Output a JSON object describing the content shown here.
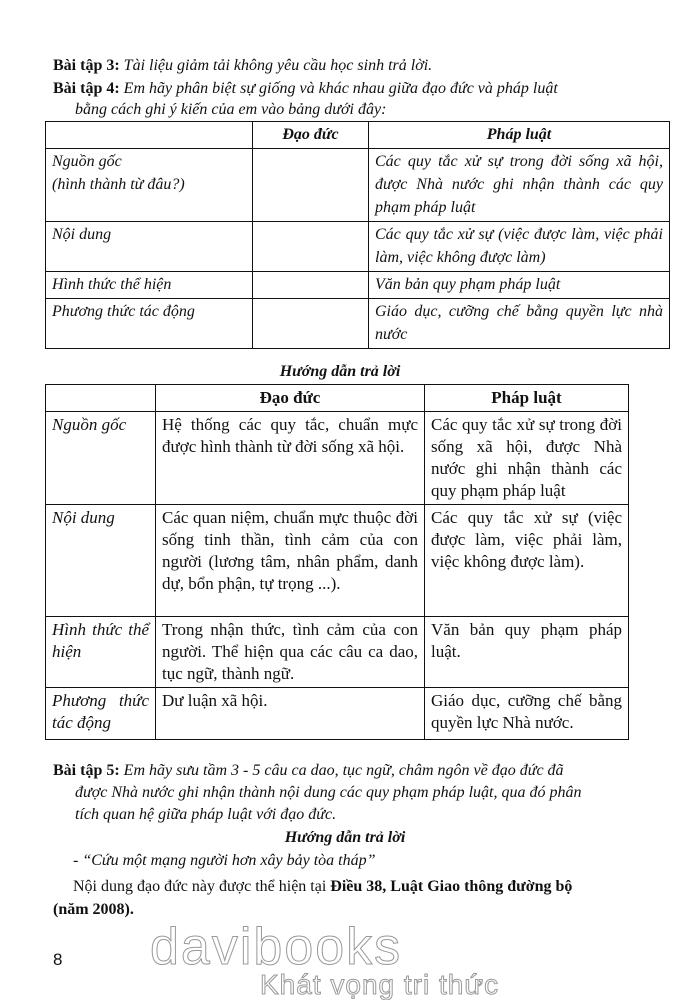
{
  "ex3": {
    "label": "Bài tập 3:",
    "text": "Tài liệu giảm tải không yêu cầu học sinh trả lời."
  },
  "ex4": {
    "label": "Bài tập 4:",
    "text_line1": "Em hãy phân biệt sự giống và khác nhau giữa đạo đức và pháp luật",
    "text_line2": "bằng cách ghi ý kiến của em vào bảng dưới đây:"
  },
  "table1": {
    "headers": [
      "",
      "Đạo đức",
      "Pháp luật"
    ],
    "rows": [
      {
        "criterion": "Nguồn gốc",
        "criterion2": "(hình thành từ đâu?)",
        "dao_duc": "",
        "phap_luat": "Các quy tắc xử sự trong đời sống xã hội, được Nhà nước ghi nhận thành các quy phạm pháp luật"
      },
      {
        "criterion": "Nội dung",
        "criterion2": "",
        "dao_duc": "",
        "phap_luat": "Các quy tắc xử sự (việc được làm, việc phải làm, việc không được làm)"
      },
      {
        "criterion": "Hình thức thể hiện",
        "criterion2": "",
        "dao_duc": "",
        "phap_luat": "Văn bản quy phạm pháp luật"
      },
      {
        "criterion": "Phương thức tác động",
        "criterion2": "",
        "dao_duc": "",
        "phap_luat": "Giáo dục, cưỡng chế bằng quyền lực nhà nước"
      }
    ]
  },
  "answer_heading_1": "Hướng dẫn trả lời",
  "table2": {
    "headers": [
      "",
      "Đạo đức",
      "Pháp luật"
    ],
    "rows": [
      {
        "criterion": "Nguồn gốc",
        "dao_duc": "Hệ thống các quy tắc, chuẩn mực được hình thành từ đời sống xã hội.",
        "phap_luat": "Các quy tắc xử sự trong đời sống xã hội, được Nhà nước ghi nhận thành các quy phạm pháp luật"
      },
      {
        "criterion": "Nội dung",
        "dao_duc": "Các quan niệm, chuẩn mực thuộc đời sống tinh thần, tình cảm của con người (lương tâm, nhân phẩm, danh dự, bổn phận, tự trọng ...).",
        "phap_luat": "Các quy tắc xử sự (việc được làm, việc phải làm, việc không được làm)."
      },
      {
        "criterion": "Hình thức thể hiện",
        "dao_duc": "Trong nhận thức, tình cảm của con người. Thể hiện qua các câu ca dao, tục ngữ, thành ngữ.",
        "phap_luat": "Văn bản quy phạm pháp luật."
      },
      {
        "criterion": "Phương thức tác động",
        "dao_duc": "Dư luận xã hội.",
        "phap_luat": "Giáo dục, cưỡng chế bằng quyền lực Nhà nước."
      }
    ]
  },
  "ex5": {
    "label": "Bài tập 5:",
    "text_line1": "Em hãy sưu tầm 3 - 5 câu ca dao, tục ngữ, châm ngôn về đạo đức đã",
    "text_line2": "được Nhà nước ghi nhận thành nội dung các quy phạm pháp luật, qua đó phân",
    "text_line3": "tích quan hệ giữa pháp luật với đạo đức."
  },
  "answer_heading_2": "Hướng dẫn trả lời",
  "quote": "- “Cứu một mạng người hơn xây bảy tòa tháp”",
  "conclusion": {
    "prefix": "Nội dung đạo đức này được thể hiện tại ",
    "bold": "Điều 38, Luật Giao thông đường bộ",
    "line2": "(năm 2008)."
  },
  "page_number": "8",
  "watermark": {
    "brand": "davibooks",
    "slogan": "Khát vọng tri thức"
  }
}
